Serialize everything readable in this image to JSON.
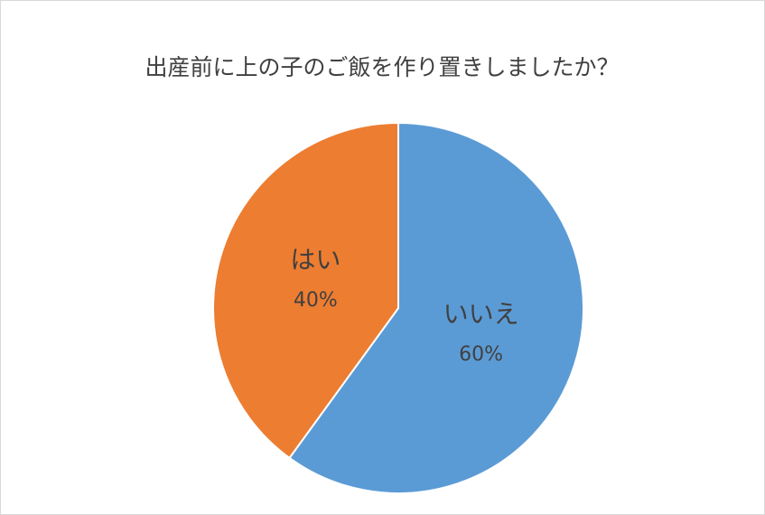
{
  "chart_data": {
    "type": "pie",
    "title": "出産前に上の子のご飯を作り置きしましたか？",
    "categories": [
      "いいえ",
      "はい"
    ],
    "values": [
      60,
      40
    ],
    "value_labels": [
      "60%",
      "40%"
    ],
    "colors": [
      "#5b9bd5",
      "#ed7d31"
    ]
  }
}
